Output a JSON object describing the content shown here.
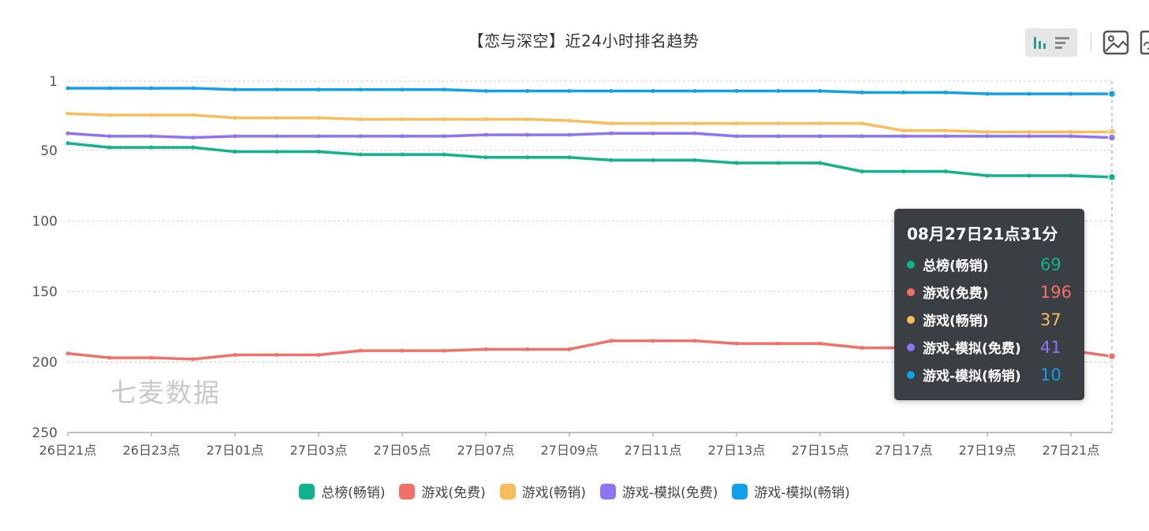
{
  "title": "【恋与深空】近24小时排名趋势",
  "watermark": "七麦数据",
  "toolbox": {
    "icons": [
      "bar-line-toggle-icon",
      "list-toggle-icon",
      "save-image-icon",
      "restore-icon"
    ]
  },
  "chart_data": {
    "type": "line",
    "title": "【恋与深空】近24小时排名趋势",
    "y_inverse": true,
    "ylim": [
      1,
      250
    ],
    "yticks": [
      1,
      50,
      100,
      150,
      200,
      250
    ],
    "grid": true,
    "legend_position": "bottom",
    "x_tick_labels": [
      "26日21点",
      "26日23点",
      "27日01点",
      "27日03点",
      "27日05点",
      "27日07点",
      "27日09点",
      "27日11点",
      "27日13点",
      "27日15点",
      "27日17点",
      "27日19点",
      "27日21点"
    ],
    "x": [
      "26日21点",
      "26日22点",
      "26日23点",
      "27日00点",
      "27日01点",
      "27日02点",
      "27日03点",
      "27日04点",
      "27日05点",
      "27日06点",
      "27日07点",
      "27日08点",
      "27日09点",
      "27日10点",
      "27日11点",
      "27日12点",
      "27日13点",
      "27日14点",
      "27日15点",
      "27日16点",
      "27日17点",
      "27日18点",
      "27日19点",
      "27日20点",
      "27日21点",
      "08月27日21点31分"
    ],
    "series": [
      {
        "name": "总榜(畅销)",
        "color": "#10b38a",
        "values": [
          45,
          48,
          48,
          48,
          51,
          51,
          51,
          53,
          53,
          53,
          55,
          55,
          55,
          57,
          57,
          57,
          59,
          59,
          59,
          65,
          65,
          65,
          68,
          68,
          68,
          69
        ]
      },
      {
        "name": "游戏(免费)",
        "color": "#f27068",
        "values": [
          194,
          197,
          197,
          198,
          195,
          195,
          195,
          192,
          192,
          192,
          191,
          191,
          191,
          185,
          185,
          185,
          187,
          187,
          187,
          190,
          190,
          190,
          192,
          192,
          192,
          196
        ]
      },
      {
        "name": "游戏(畅销)",
        "color": "#fbbc5c",
        "values": [
          24,
          25,
          25,
          25,
          27,
          27,
          27,
          28,
          28,
          28,
          28,
          28,
          29,
          31,
          31,
          31,
          31,
          31,
          31,
          31,
          36,
          36,
          37,
          37,
          37,
          37
        ]
      },
      {
        "name": "游戏-模拟(免费)",
        "color": "#8e73f3",
        "values": [
          38,
          40,
          40,
          41,
          40,
          40,
          40,
          40,
          40,
          40,
          39,
          39,
          39,
          38,
          38,
          38,
          40,
          40,
          40,
          40,
          40,
          40,
          40,
          40,
          40,
          41
        ]
      },
      {
        "name": "游戏-模拟(畅销)",
        "color": "#12a0ea",
        "values": [
          6,
          6,
          6,
          6,
          7,
          7,
          7,
          7,
          7,
          7,
          8,
          8,
          8,
          8,
          8,
          8,
          8,
          8,
          8,
          9,
          9,
          9,
          10,
          10,
          10,
          10
        ]
      }
    ]
  },
  "tooltip": {
    "time": "08月27日21点31分",
    "rows": [
      {
        "name": "总榜(畅销)",
        "value": "69",
        "color": "#10b38a"
      },
      {
        "name": "游戏(免费)",
        "value": "196",
        "color": "#f27068"
      },
      {
        "name": "游戏(畅销)",
        "value": "37",
        "color": "#fbbc5c"
      },
      {
        "name": "游戏-模拟(免费)",
        "value": "41",
        "color": "#8e73f3"
      },
      {
        "name": "游戏-模拟(畅销)",
        "value": "10",
        "color": "#12a0ea"
      }
    ]
  }
}
